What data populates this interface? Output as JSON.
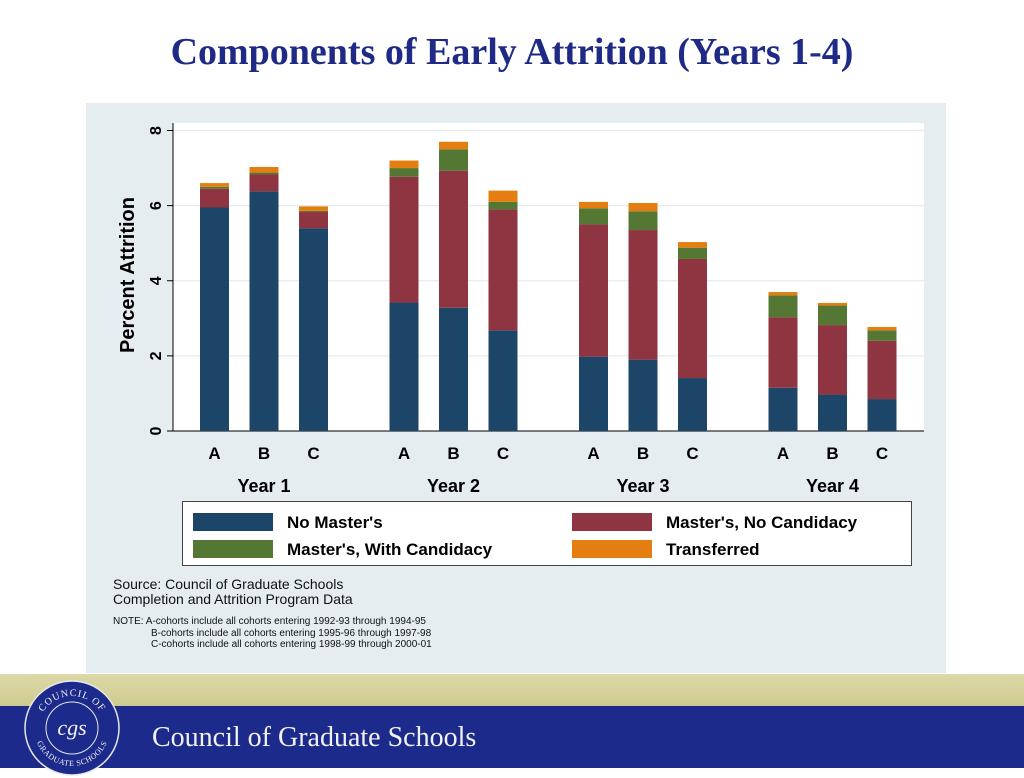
{
  "page": {
    "title": "Components of Early Attrition (Years 1-4)"
  },
  "chart_data": {
    "type": "bar",
    "stacked": true,
    "ylabel": "Percent Attrition",
    "xlabel": "",
    "ylim": [
      0,
      8.2
    ],
    "yticks": [
      0,
      2,
      4,
      6,
      8
    ],
    "grid": true,
    "legend_position": "bottom",
    "groups": [
      "Year 1",
      "Year 2",
      "Year 3",
      "Year 4"
    ],
    "categories": [
      "A",
      "B",
      "C",
      "A",
      "B",
      "C",
      "A",
      "B",
      "C",
      "A",
      "B",
      "C"
    ],
    "series": [
      {
        "name": "No Master's",
        "color": "#1c4568",
        "values": [
          5.95,
          6.38,
          5.4,
          3.42,
          3.28,
          2.68,
          1.98,
          1.9,
          1.41,
          1.15,
          0.97,
          0.85
        ]
      },
      {
        "name": "Master's, No Candidacy",
        "color": "#8f3542",
        "values": [
          0.5,
          0.45,
          0.43,
          3.35,
          3.65,
          3.22,
          3.52,
          3.45,
          3.17,
          1.88,
          1.85,
          1.55
        ]
      },
      {
        "name": "Master's, With Candidacy",
        "color": "#547833",
        "values": [
          0.05,
          0.05,
          0.03,
          0.23,
          0.57,
          0.2,
          0.43,
          0.5,
          0.3,
          0.58,
          0.52,
          0.28
        ]
      },
      {
        "name": "Transferred",
        "color": "#e47e10",
        "values": [
          0.1,
          0.15,
          0.12,
          0.2,
          0.2,
          0.3,
          0.17,
          0.22,
          0.15,
          0.09,
          0.07,
          0.09
        ]
      }
    ]
  },
  "source": {
    "line1": "Source: Council of Graduate Schools",
    "line2": "Completion and Attrition Program Data"
  },
  "note": {
    "line1": "NOTE: A-cohorts include all cohorts entering 1992-93 through 1994-95",
    "line2": "B-cohorts include all cohorts entering 1995-96 through 1997-98",
    "line3": "C-cohorts include all cohorts entering 1998-99 through 2000-01"
  },
  "footer": {
    "org_name": "Council of Graduate Schools",
    "seal_top": "COUNCIL OF",
    "seal_monogram": "cgs",
    "seal_bottom": "GRADUATE SCHOOLS"
  }
}
